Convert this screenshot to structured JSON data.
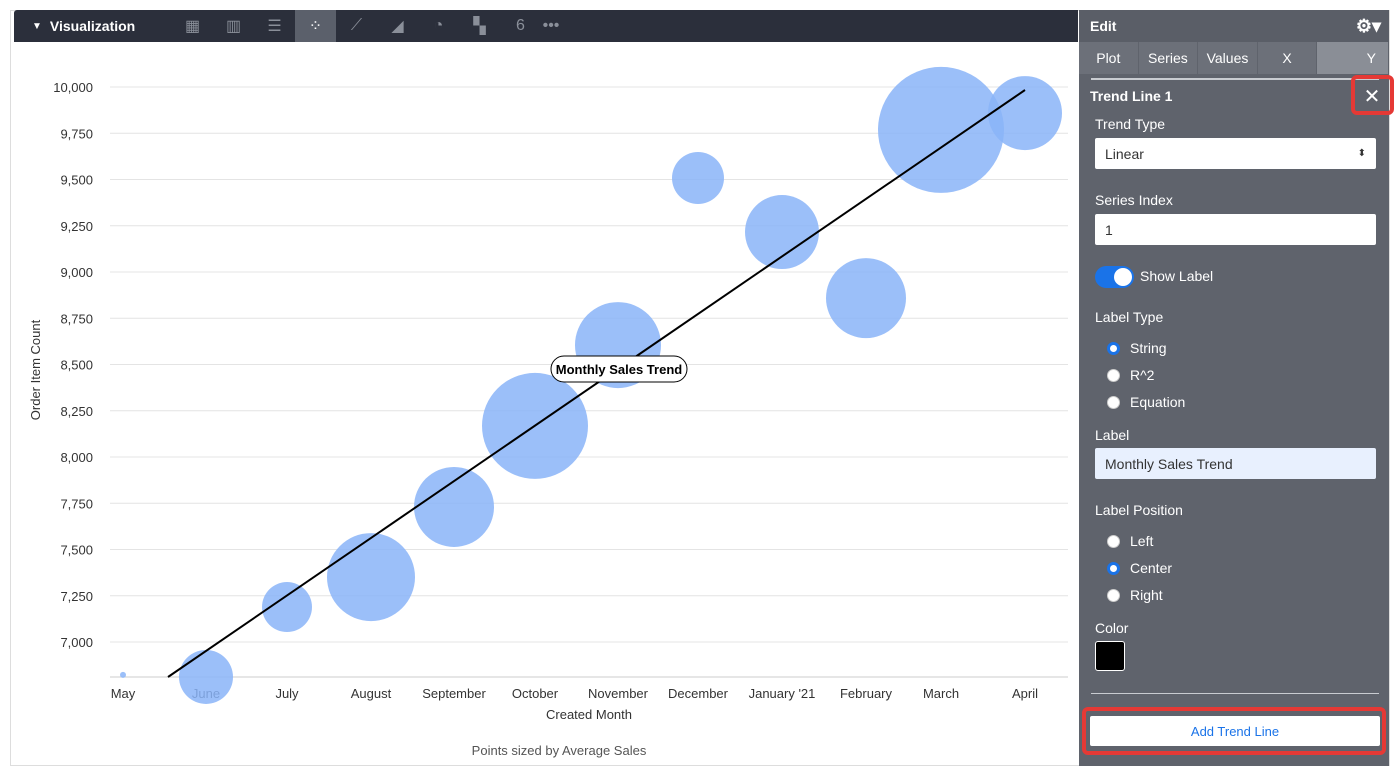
{
  "viz": {
    "title": "Visualization",
    "icons": [
      "table-icon",
      "column-chart-icon",
      "bar-chart-icon",
      "scatter-icon",
      "line-icon",
      "area-icon",
      "pie-icon",
      "map-icon",
      "single-value-icon",
      "more-icon"
    ],
    "active": "scatter-icon"
  },
  "chart_data": {
    "type": "scatter",
    "categories": [
      "May",
      "June",
      "July",
      "August",
      "September",
      "October",
      "November",
      "December",
      "January '21",
      "February",
      "March",
      "April"
    ],
    "values": [
      6822,
      6811,
      7189,
      7351,
      7730,
      8168,
      8605,
      9508,
      9216,
      8859,
      9768,
      9859
    ],
    "sizes": [
      3,
      27,
      25,
      44,
      40,
      53,
      43,
      26,
      37,
      40,
      63,
      37
    ],
    "ylabel": "Order Item Count",
    "xlabel": "Created Month",
    "subtitle": "Points sized by Average Sales",
    "yticks": [
      "10,000",
      "9,750",
      "9,500",
      "9,250",
      "9,000",
      "8,750",
      "8,500",
      "8,250",
      "8,000",
      "7,750",
      "7,500",
      "7,250",
      "7,000"
    ],
    "ylim": [
      6810,
      10200
    ],
    "grid": true,
    "color": "#8ab4f8",
    "trend": {
      "type": "linear",
      "label": "Monthly Sales Trend",
      "color": "#000000"
    }
  },
  "panel": {
    "title": "Edit",
    "tabs": [
      "Plot",
      "Series",
      "Values",
      "X",
      "Y"
    ],
    "active_tab": "Y",
    "section": "Trend Line 1",
    "trend_type_label": "Trend Type",
    "trend_type": "Linear",
    "series_index_label": "Series Index",
    "series_index": "1",
    "show_label": "Show Label",
    "show_label_on": true,
    "label_type_label": "Label Type",
    "label_types": [
      "String",
      "R^2",
      "Equation"
    ],
    "label_label": "Label",
    "label_value": "Monthly Sales Trend",
    "label_position_label": "Label Position",
    "positions": [
      "Left",
      "Center",
      "Right"
    ],
    "color_label": "Color",
    "color": "#000000",
    "add": "Add Trend Line"
  }
}
